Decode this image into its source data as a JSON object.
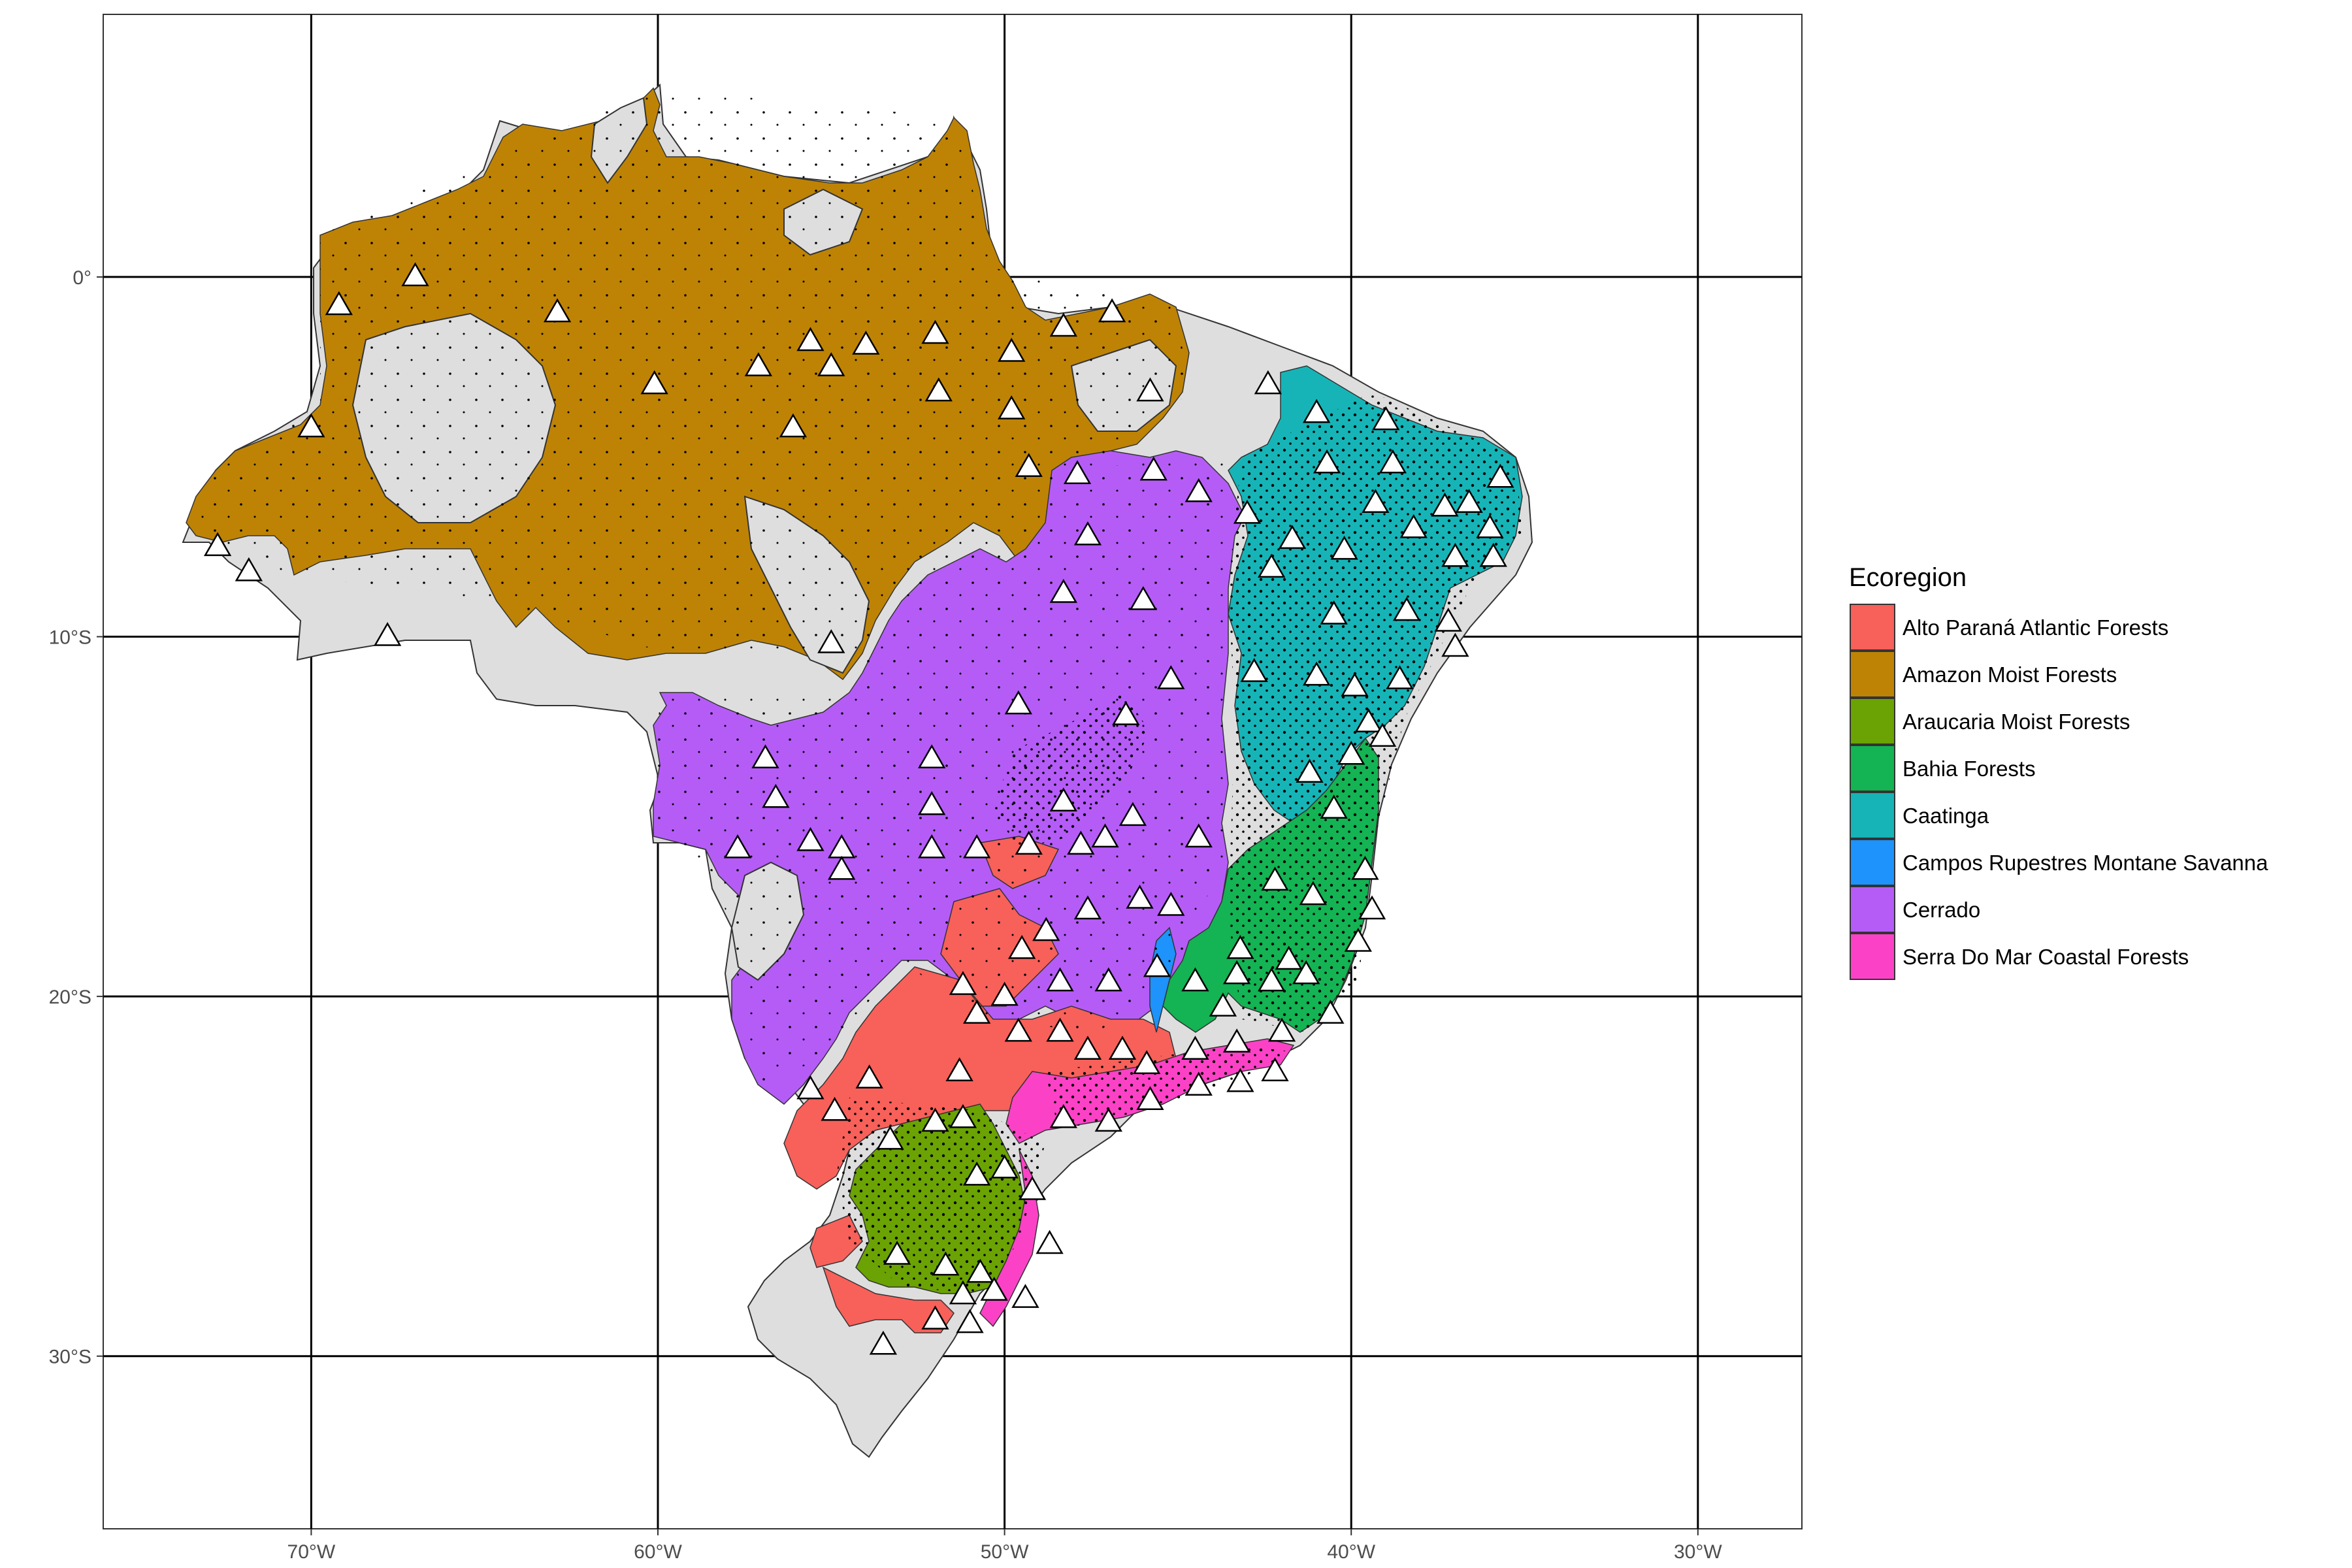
{
  "map": {
    "type": "map",
    "region": "Brazil",
    "x_axis": {
      "range_deg": [
        -76,
        -27
      ],
      "ticks": [
        {
          "value": -70,
          "label": "70°W"
        },
        {
          "value": -60,
          "label": "60°W"
        },
        {
          "value": -50,
          "label": "50°W"
        },
        {
          "value": -40,
          "label": "40°W"
        },
        {
          "value": -30,
          "label": "30°W"
        }
      ]
    },
    "y_axis": {
      "range_deg": [
        -34.8,
        7.3
      ],
      "ticks": [
        {
          "value": 0,
          "label": "0°"
        },
        {
          "value": -10,
          "label": "10°S"
        },
        {
          "value": -20,
          "label": "20°S"
        },
        {
          "value": -30,
          "label": "30°S"
        }
      ]
    },
    "grid": true,
    "background_land_color": "#DEDEDE",
    "occurrence_point_color": "#000000",
    "site_marker": "white-triangle"
  },
  "legend": {
    "title": "Ecoregion",
    "placement": "right",
    "items": [
      {
        "label": "Alto Paraná Atlantic Forests",
        "color": "#F8605A"
      },
      {
        "label": "Amazon Moist Forests",
        "color": "#BE8305"
      },
      {
        "label": "Araucaria Moist Forests",
        "color": "#6AA303"
      },
      {
        "label": "Bahia Forests",
        "color": "#14B353"
      },
      {
        "label": "Caatinga",
        "color": "#16B4B7"
      },
      {
        "label": "Campos Rupestres Montane Savanna",
        "color": "#1D93FB"
      },
      {
        "label": "Cerrado",
        "color": "#B55CF7"
      },
      {
        "label": "Serra Do Mar Coastal Forests",
        "color": "#FB42C6"
      }
    ]
  },
  "chart_data": {
    "type": "scatter",
    "xlabel": "",
    "ylabel": "",
    "xlim": [
      -76,
      -27
    ],
    "ylim": [
      -34.8,
      7.3
    ],
    "grid": true,
    "legend_position": "right",
    "series": [
      {
        "name": "",
        "marker": "triangle",
        "points": [
          [
            -69.2,
            -0.8
          ],
          [
            -67.0,
            0.0
          ],
          [
            -62.9,
            -1.0
          ],
          [
            -70.0,
            -4.2
          ],
          [
            -72.7,
            -7.5
          ],
          [
            -71.8,
            -8.2
          ],
          [
            -67.8,
            -10.0
          ],
          [
            -60.1,
            -3.0
          ],
          [
            -57.1,
            -2.5
          ],
          [
            -55.6,
            -1.8
          ],
          [
            -55.0,
            -2.5
          ],
          [
            -54.0,
            -1.9
          ],
          [
            -52.0,
            -1.6
          ],
          [
            -51.9,
            -3.2
          ],
          [
            -49.8,
            -2.1
          ],
          [
            -49.8,
            -3.7
          ],
          [
            -48.3,
            -1.4
          ],
          [
            -46.9,
            -1.0
          ],
          [
            -45.8,
            -3.2
          ],
          [
            -49.3,
            -5.3
          ],
          [
            -56.1,
            -4.2
          ],
          [
            -55.0,
            -10.2
          ],
          [
            -56.9,
            -13.4
          ],
          [
            -56.6,
            -14.5
          ],
          [
            -57.7,
            -15.9
          ],
          [
            -55.6,
            -15.7
          ],
          [
            -54.7,
            -15.9
          ],
          [
            -54.7,
            -16.5
          ],
          [
            -52.1,
            -13.4
          ],
          [
            -52.1,
            -14.7
          ],
          [
            -52.1,
            -15.9
          ],
          [
            -50.8,
            -15.9
          ],
          [
            -49.3,
            -15.8
          ],
          [
            -47.8,
            -15.8
          ],
          [
            -47.1,
            -15.6
          ],
          [
            -46.1,
            -17.3
          ],
          [
            -45.2,
            -17.5
          ],
          [
            -47.6,
            -17.6
          ],
          [
            -48.8,
            -18.2
          ],
          [
            -49.5,
            -18.7
          ],
          [
            -51.2,
            -19.7
          ],
          [
            -50.8,
            -20.5
          ],
          [
            -50.0,
            -20.0
          ],
          [
            -48.4,
            -19.6
          ],
          [
            -47.0,
            -19.6
          ],
          [
            -45.6,
            -19.2
          ],
          [
            -44.5,
            -19.6
          ],
          [
            -43.3,
            -19.4
          ],
          [
            -43.7,
            -20.3
          ],
          [
            -42.3,
            -19.6
          ],
          [
            -41.3,
            -19.4
          ],
          [
            -40.6,
            -20.5
          ],
          [
            -42.0,
            -21.0
          ],
          [
            -43.3,
            -21.3
          ],
          [
            -44.5,
            -21.5
          ],
          [
            -45.9,
            -21.9
          ],
          [
            -46.6,
            -21.5
          ],
          [
            -47.6,
            -21.5
          ],
          [
            -48.4,
            -21.0
          ],
          [
            -49.6,
            -21.0
          ],
          [
            -51.3,
            -22.1
          ],
          [
            -53.9,
            -22.3
          ],
          [
            -55.6,
            -22.6
          ],
          [
            -54.9,
            -23.2
          ],
          [
            -53.3,
            -24.0
          ],
          [
            -52.0,
            -23.5
          ],
          [
            -51.2,
            -23.4
          ],
          [
            -48.3,
            -23.4
          ],
          [
            -47.0,
            -23.5
          ],
          [
            -45.8,
            -22.9
          ],
          [
            -44.4,
            -22.5
          ],
          [
            -43.2,
            -22.4
          ],
          [
            -42.2,
            -22.1
          ],
          [
            -50.8,
            -25.0
          ],
          [
            -50.0,
            -24.8
          ],
          [
            -49.2,
            -25.4
          ],
          [
            -48.7,
            -26.9
          ],
          [
            -50.7,
            -27.7
          ],
          [
            -51.7,
            -27.5
          ],
          [
            -53.1,
            -27.2
          ],
          [
            -51.2,
            -28.3
          ],
          [
            -50.3,
            -28.2
          ],
          [
            -49.4,
            -28.4
          ],
          [
            -51.0,
            -29.1
          ],
          [
            -52.0,
            -29.0
          ],
          [
            -53.5,
            -29.7
          ],
          [
            -47.9,
            -5.5
          ],
          [
            -45.7,
            -5.4
          ],
          [
            -44.4,
            -6.0
          ],
          [
            -43.0,
            -6.6
          ],
          [
            -47.6,
            -7.2
          ],
          [
            -48.3,
            -8.8
          ],
          [
            -46.0,
            -9.0
          ],
          [
            -45.2,
            -11.2
          ],
          [
            -46.5,
            -12.2
          ],
          [
            -49.6,
            -11.9
          ],
          [
            -48.3,
            -14.6
          ],
          [
            -46.3,
            -15.0
          ],
          [
            -44.4,
            -15.6
          ],
          [
            -42.2,
            -16.8
          ],
          [
            -41.1,
            -17.2
          ],
          [
            -41.8,
            -19.0
          ],
          [
            -43.2,
            -18.7
          ],
          [
            -41.0,
            -3.8
          ],
          [
            -39.0,
            -4.0
          ],
          [
            -42.4,
            -3.0
          ],
          [
            -40.7,
            -5.2
          ],
          [
            -38.8,
            -5.2
          ],
          [
            -37.3,
            -6.4
          ],
          [
            -35.7,
            -5.6
          ],
          [
            -36.6,
            -6.3
          ],
          [
            -36.0,
            -7.0
          ],
          [
            -35.9,
            -7.8
          ],
          [
            -37.0,
            -7.8
          ],
          [
            -38.2,
            -7.0
          ],
          [
            -39.3,
            -6.3
          ],
          [
            -40.2,
            -7.6
          ],
          [
            -41.7,
            -7.3
          ],
          [
            -42.3,
            -8.1
          ],
          [
            -40.5,
            -9.4
          ],
          [
            -38.4,
            -9.3
          ],
          [
            -37.2,
            -9.6
          ],
          [
            -37.0,
            -10.3
          ],
          [
            -38.6,
            -11.2
          ],
          [
            -39.9,
            -11.4
          ],
          [
            -41.0,
            -11.1
          ],
          [
            -42.8,
            -11.0
          ],
          [
            -39.5,
            -12.4
          ],
          [
            -40.0,
            -13.3
          ],
          [
            -41.2,
            -13.8
          ],
          [
            -40.5,
            -14.8
          ],
          [
            -39.1,
            -12.8
          ],
          [
            -39.6,
            -16.5
          ],
          [
            -39.4,
            -17.6
          ],
          [
            -39.8,
            -18.5
          ]
        ]
      }
    ]
  }
}
